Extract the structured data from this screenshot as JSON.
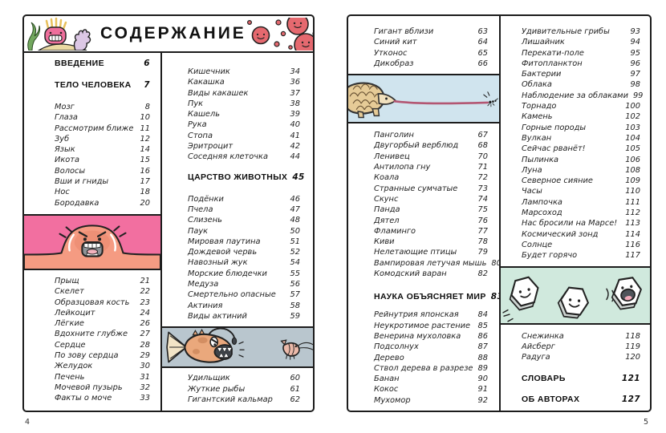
{
  "title": "СОДЕРЖАНИЕ",
  "colors": {
    "pink_box": "#f26fa0",
    "pimple_skin": "#f59b82",
    "angler_bg": "#b9c6ce",
    "angler_fish": "#eaa87c",
    "pangolin_bg": "#d0e4ee",
    "pangolin": "#e6cb97",
    "mint_box": "#d0e9dd",
    "red_cell": "#e5696f",
    "seaweed": "#72a75e",
    "sand": "#ead9a2",
    "anemone": "#ee6f9c",
    "anemone_hair": "#e8c05c",
    "coral_hand": "#dcc7e5",
    "ink": "#1c1c1c"
  },
  "illustrations": {
    "header_left": "seaweed-anemone-coral-icon",
    "header_right": "red-blood-cells-icon",
    "pimple": "angry-pimple-illustration",
    "angler": "anglerfish-shrimp-illustration",
    "pangolin": "pangolin-tongue-ant-illustration",
    "crystals": "snow-crystal-characters-illustration"
  },
  "left": {
    "folio": "4",
    "col1": {
      "intro": [
        {
          "label": "ВВЕДЕНИЕ",
          "num": "6"
        }
      ],
      "body_heading": [
        {
          "label": "ТЕЛО ЧЕЛОВЕКА",
          "num": "7"
        }
      ],
      "entries1": [
        {
          "label": "Мозг",
          "num": "8"
        },
        {
          "label": "Глаза",
          "num": "10"
        },
        {
          "label": "Рассмотрим ближе",
          "num": "11"
        },
        {
          "label": "Зуб",
          "num": "12"
        },
        {
          "label": "Язык",
          "num": "14"
        },
        {
          "label": "Икота",
          "num": "15"
        },
        {
          "label": "Волосы",
          "num": "16"
        },
        {
          "label": "Вши и гниды",
          "num": "17"
        },
        {
          "label": "Нос",
          "num": "18"
        },
        {
          "label": "Бородавка",
          "num": "20"
        }
      ],
      "entries2": [
        {
          "label": "Прыщ",
          "num": "21"
        },
        {
          "label": "Скелет",
          "num": "22"
        },
        {
          "label": "Образцовая кость",
          "num": "23"
        },
        {
          "label": "Лейкоцит",
          "num": "24"
        },
        {
          "label": "Лёгкие",
          "num": "26"
        },
        {
          "label": "Вдохните глубже",
          "num": "27"
        },
        {
          "label": "Сердце",
          "num": "28"
        },
        {
          "label": "По зову сердца",
          "num": "29"
        },
        {
          "label": "Желудок",
          "num": "30"
        },
        {
          "label": "Печень",
          "num": "31"
        },
        {
          "label": "Мочевой пузырь",
          "num": "32"
        },
        {
          "label": "Факты о моче",
          "num": "33"
        }
      ]
    },
    "col2": {
      "entries1": [
        {
          "label": "Кишечник",
          "num": "34"
        },
        {
          "label": "Какашка",
          "num": "36"
        },
        {
          "label": "Виды какашек",
          "num": "37"
        },
        {
          "label": "Пук",
          "num": "38"
        },
        {
          "label": "Кашель",
          "num": "39"
        },
        {
          "label": "Рука",
          "num": "40"
        },
        {
          "label": "Стопа",
          "num": "41"
        },
        {
          "label": "Эритроцит",
          "num": "42"
        },
        {
          "label": "Соседняя клеточка",
          "num": "44"
        }
      ],
      "animals_heading": [
        {
          "label": "ЦАРСТВО ЖИВОТНЫХ",
          "num": "45"
        }
      ],
      "entries2": [
        {
          "label": "Подёнки",
          "num": "46"
        },
        {
          "label": "Пчела",
          "num": "47"
        },
        {
          "label": "Слизень",
          "num": "48"
        },
        {
          "label": "Паук",
          "num": "50"
        },
        {
          "label": "Мировая паутина",
          "num": "51"
        },
        {
          "label": "Дождевой червь",
          "num": "52"
        },
        {
          "label": "Навозный жук",
          "num": "54"
        },
        {
          "label": "Морские блюдечки",
          "num": "55"
        },
        {
          "label": "Медуза",
          "num": "56"
        },
        {
          "label": "Смертельно опасные",
          "num": "57"
        },
        {
          "label": "Актиния",
          "num": "58"
        },
        {
          "label": "Виды актиний",
          "num": "59"
        }
      ],
      "entries3": [
        {
          "label": "Удильщик",
          "num": "60"
        },
        {
          "label": "Жуткие рыбы",
          "num": "61"
        },
        {
          "label": "Гигантский кальмар",
          "num": "62"
        }
      ]
    }
  },
  "right": {
    "folio": "5",
    "col1": {
      "entries1": [
        {
          "label": "Гигант вблизи",
          "num": "63"
        },
        {
          "label": "Синий кит",
          "num": "64"
        },
        {
          "label": "Утконос",
          "num": "65"
        },
        {
          "label": "Дикобраз",
          "num": "66"
        }
      ],
      "entries2": [
        {
          "label": "Панголин",
          "num": "67"
        },
        {
          "label": "Двугорбый верблюд",
          "num": "68"
        },
        {
          "label": "Ленивец",
          "num": "70"
        },
        {
          "label": "Антилопа гну",
          "num": "71"
        },
        {
          "label": "Коала",
          "num": "72"
        },
        {
          "label": "Странные сумчатые",
          "num": "73"
        },
        {
          "label": "Скунс",
          "num": "74"
        },
        {
          "label": "Панда",
          "num": "75"
        },
        {
          "label": "Дятел",
          "num": "76"
        },
        {
          "label": "Фламинго",
          "num": "77"
        },
        {
          "label": "Киви",
          "num": "78"
        },
        {
          "label": "Нелетающие птицы",
          "num": "79"
        },
        {
          "label": "Вампировая летучая мышь",
          "num": "80"
        },
        {
          "label": "Комодский варан",
          "num": "82"
        }
      ],
      "science_heading": [
        {
          "label": "НАУКА ОБЪЯСНЯЕТ МИР",
          "num": "83"
        }
      ],
      "entries3": [
        {
          "label": "Рейнутрия японская",
          "num": "84"
        },
        {
          "label": "Неукротимое растение",
          "num": "85"
        },
        {
          "label": "Венерина мухоловка",
          "num": "86"
        },
        {
          "label": "Подсолнух",
          "num": "87"
        },
        {
          "label": "Дерево",
          "num": "88"
        },
        {
          "label": "Ствол дерева в разрезе",
          "num": "89"
        },
        {
          "label": "Банан",
          "num": "90"
        },
        {
          "label": "Кокос",
          "num": "91"
        },
        {
          "label": "Мухомор",
          "num": "92"
        }
      ]
    },
    "col2": {
      "entries1": [
        {
          "label": "Удивительные грибы",
          "num": "93"
        },
        {
          "label": "Лишайник",
          "num": "94"
        },
        {
          "label": "Перекати-поле",
          "num": "95"
        },
        {
          "label": "Фитопланктон",
          "num": "96"
        },
        {
          "label": "Бактерии",
          "num": "97"
        },
        {
          "label": "Облака",
          "num": "98"
        },
        {
          "label": "Наблюдение за облаками",
          "num": "99"
        },
        {
          "label": "Торнадо",
          "num": "100"
        },
        {
          "label": "Камень",
          "num": "102"
        },
        {
          "label": "Горные породы",
          "num": "103"
        },
        {
          "label": "Вулкан",
          "num": "104"
        },
        {
          "label": "Сейчас рванёт!",
          "num": "105"
        },
        {
          "label": "Пылинка",
          "num": "106"
        },
        {
          "label": "Луна",
          "num": "108"
        },
        {
          "label": "Северное сияние",
          "num": "109"
        },
        {
          "label": "Часы",
          "num": "110"
        },
        {
          "label": "Лампочка",
          "num": "111"
        },
        {
          "label": "Марсоход",
          "num": "112"
        },
        {
          "label": "Нас бросили на Марсе!",
          "num": "113"
        },
        {
          "label": "Космический зонд",
          "num": "114"
        },
        {
          "label": "Солнце",
          "num": "116"
        },
        {
          "label": "Будет горячо",
          "num": "117"
        }
      ],
      "entries2": [
        {
          "label": "Снежинка",
          "num": "118"
        },
        {
          "label": "Айсберг",
          "num": "119"
        },
        {
          "label": "Радуга",
          "num": "120"
        }
      ],
      "glossary_heading": [
        {
          "label": "СЛОВАРЬ",
          "num": "121"
        }
      ],
      "authors_heading": [
        {
          "label": "ОБ АВТОРАХ",
          "num": "127"
        }
      ]
    }
  }
}
